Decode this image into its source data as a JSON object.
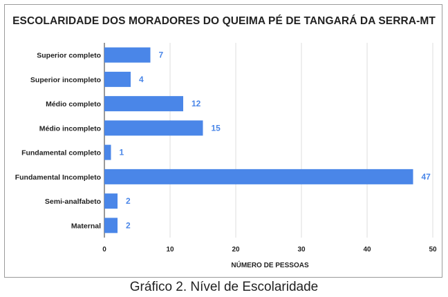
{
  "chart_data": {
    "type": "bar",
    "orientation": "horizontal",
    "title": "ESCOLARIDADE DOS MORADORES DO QUEIMA PÉ DE TANGARÁ DA SERRA-MT",
    "xlabel": "NÚMERO DE PESSOAS",
    "ylabel": "",
    "categories": [
      "Superior completo",
      "Superior incompleto",
      "Médio completo",
      "Médio incompleto",
      "Fundamental completo",
      "Fundamental Incompleto",
      "Semi-analfabeto",
      "Maternal"
    ],
    "values": [
      7,
      4,
      12,
      15,
      1,
      47,
      2,
      2
    ],
    "xlim": [
      0,
      50
    ],
    "xticks": [
      0,
      10,
      20,
      30,
      40,
      50
    ],
    "grid": true,
    "bar_color": "#4a86e8",
    "label_color": "#4a86e8"
  },
  "caption": "Gráfico 2. Nível de Escolaridade"
}
